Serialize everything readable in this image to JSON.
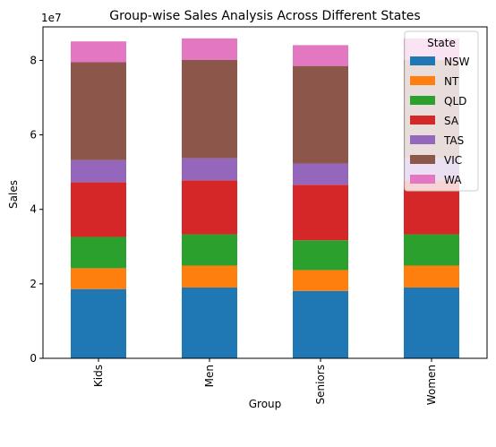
{
  "chart_data": {
    "type": "bar",
    "stacked": true,
    "title": "Group-wise Sales Analysis Across Different States",
    "xlabel": "Group",
    "ylabel": "Sales",
    "y_offset_label": "1e7",
    "y_scale": 10000000,
    "ylim": [
      0,
      89000000
    ],
    "yticks": [
      {
        "value": 0,
        "label": "0"
      },
      {
        "value": 20000000,
        "label": "2"
      },
      {
        "value": 40000000,
        "label": "4"
      },
      {
        "value": 60000000,
        "label": "6"
      },
      {
        "value": 80000000,
        "label": "8"
      }
    ],
    "categories": [
      "Kids",
      "Men",
      "Seniors",
      "Women"
    ],
    "grid": false,
    "legend": {
      "title": "State",
      "placement": "top-right"
    },
    "series": [
      {
        "name": "NSW",
        "color": "#1f77b4",
        "values": [
          18600000,
          19000000,
          18100000,
          19000000
        ]
      },
      {
        "name": "NT",
        "color": "#ff7f0e",
        "values": [
          5600000,
          5900000,
          5600000,
          5900000
        ]
      },
      {
        "name": "QLD",
        "color": "#2ca02c",
        "values": [
          8400000,
          8400000,
          8000000,
          8400000
        ]
      },
      {
        "name": "SA",
        "color": "#d62728",
        "values": [
          14700000,
          14500000,
          14900000,
          14500000
        ]
      },
      {
        "name": "TAS",
        "color": "#9467bd",
        "values": [
          5900000,
          5900000,
          5700000,
          5900000
        ]
      },
      {
        "name": "VIC",
        "color": "#8c564b",
        "values": [
          26300000,
          26400000,
          26200000,
          26400000
        ]
      },
      {
        "name": "WA",
        "color": "#e377c2",
        "values": [
          5600000,
          5800000,
          5600000,
          5800000
        ]
      }
    ]
  }
}
